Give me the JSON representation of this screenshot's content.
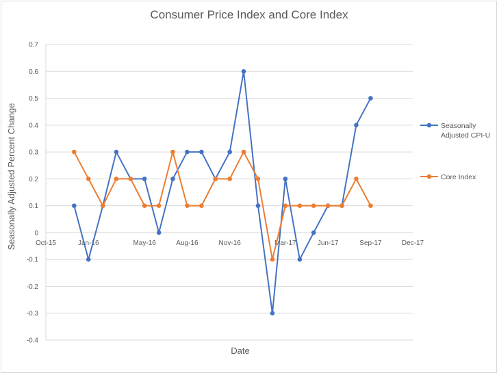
{
  "chart_data": {
    "type": "line",
    "title": "Consumer Price Index and Core Index",
    "xlabel": "Date",
    "ylabel": "Seasonally Adjusted Percent Change",
    "ylim": [
      -0.4,
      0.7
    ],
    "y_ticks": [
      "0.7",
      "0.6",
      "0.5",
      "0.4",
      "0.3",
      "0.2",
      "0.1",
      "0",
      "-0.1",
      "-0.2",
      "-0.3",
      "-0.4"
    ],
    "x_range": [
      "2015-10-01",
      "2017-12-01"
    ],
    "x_ticks": [
      "Oct-15",
      "Jan-16",
      "May-16",
      "Aug-16",
      "Nov-16",
      "Mar-17",
      "Jun-17",
      "Sep-17",
      "Dec-17"
    ],
    "x": [
      "2015-12-01",
      "2016-01-01",
      "2016-02-01",
      "2016-03-01",
      "2016-04-01",
      "2016-05-01",
      "2016-06-01",
      "2016-07-01",
      "2016-08-01",
      "2016-09-01",
      "2016-10-01",
      "2016-11-01",
      "2016-12-01",
      "2017-01-01",
      "2017-02-01",
      "2017-03-01",
      "2017-04-01",
      "2017-05-01",
      "2017-06-01",
      "2017-07-01",
      "2017-08-01",
      "2017-09-01"
    ],
    "series": [
      {
        "name": "Seasonally Adjusted CPI-U",
        "color": "#4472c4",
        "values": [
          0.1,
          -0.1,
          0.1,
          0.3,
          0.2,
          0.2,
          0.0,
          0.2,
          0.3,
          0.3,
          0.2,
          0.3,
          0.6,
          0.1,
          -0.3,
          0.2,
          -0.1,
          0.0,
          0.1,
          0.1,
          0.4,
          0.5
        ]
      },
      {
        "name": "Core Index",
        "color": "#ed7d31",
        "values": [
          0.3,
          0.2,
          0.1,
          0.2,
          0.2,
          0.1,
          0.1,
          0.3,
          0.1,
          0.1,
          0.2,
          0.2,
          0.3,
          0.2,
          -0.1,
          0.1,
          0.1,
          0.1,
          0.1,
          0.1,
          0.2,
          0.1
        ]
      }
    ],
    "legend": [
      "Seasonally",
      "Adjusted CPI-U",
      "Core Index"
    ],
    "legend_position": "right",
    "grid": true
  }
}
